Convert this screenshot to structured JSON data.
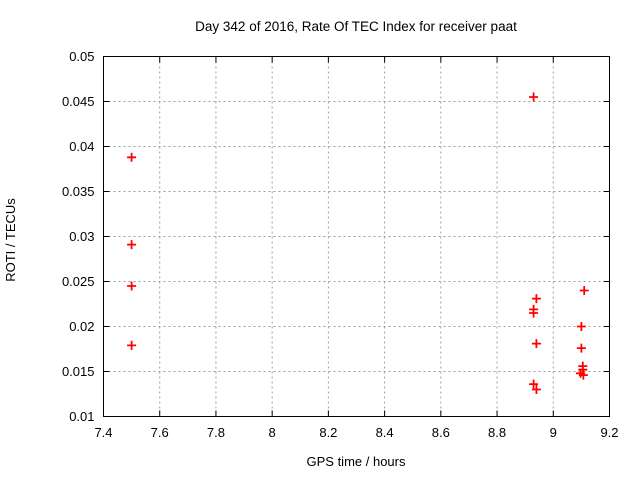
{
  "window": {
    "background": "#ffffff"
  },
  "chart_data": {
    "type": "scatter",
    "title": "Day 342 of 2016, Rate Of TEC Index for receiver paat",
    "xlabel": "GPS time / hours",
    "ylabel": "ROTI / TECUs",
    "xlim": [
      7.4,
      9.2
    ],
    "ylim": [
      0.01,
      0.05
    ],
    "grid": true,
    "legend": "none",
    "xticks": [
      {
        "v": 7.4,
        "label": "7.4"
      },
      {
        "v": 7.6,
        "label": "7.6"
      },
      {
        "v": 7.8,
        "label": "7.8"
      },
      {
        "v": 8.0,
        "label": "8"
      },
      {
        "v": 8.2,
        "label": "8.2"
      },
      {
        "v": 8.4,
        "label": "8.4"
      },
      {
        "v": 8.6,
        "label": "8.6"
      },
      {
        "v": 8.8,
        "label": "8.8"
      },
      {
        "v": 9.0,
        "label": "9"
      },
      {
        "v": 9.2,
        "label": "9.2"
      }
    ],
    "yticks": [
      {
        "v": 0.01,
        "label": "0.01"
      },
      {
        "v": 0.015,
        "label": "0.015"
      },
      {
        "v": 0.02,
        "label": "0.02"
      },
      {
        "v": 0.025,
        "label": "0.025"
      },
      {
        "v": 0.03,
        "label": "0.03"
      },
      {
        "v": 0.035,
        "label": "0.035"
      },
      {
        "v": 0.04,
        "label": "0.04"
      },
      {
        "v": 0.045,
        "label": "0.045"
      },
      {
        "v": 0.05,
        "label": "0.05"
      }
    ],
    "series": [
      {
        "name": "ROTI",
        "marker": "plus",
        "color": "#ff0000",
        "points": [
          [
            7.5,
            0.0388
          ],
          [
            7.5,
            0.0291
          ],
          [
            7.5,
            0.0245
          ],
          [
            7.5,
            0.0179
          ],
          [
            8.93,
            0.0455
          ],
          [
            8.94,
            0.0231
          ],
          [
            8.93,
            0.0219
          ],
          [
            8.93,
            0.0215
          ],
          [
            8.94,
            0.0181
          ],
          [
            8.93,
            0.0136
          ],
          [
            8.94,
            0.013
          ],
          [
            9.11,
            0.024
          ],
          [
            9.1,
            0.02
          ],
          [
            9.1,
            0.0176
          ],
          [
            9.105,
            0.0156
          ],
          [
            9.105,
            0.0152
          ],
          [
            9.097,
            0.0148
          ],
          [
            9.107,
            0.0146
          ]
        ]
      }
    ],
    "style": {
      "border_color": "#000000",
      "grid_color": "#9e9e9e",
      "marker_color": "#ff0000",
      "background": "#ffffff"
    }
  }
}
